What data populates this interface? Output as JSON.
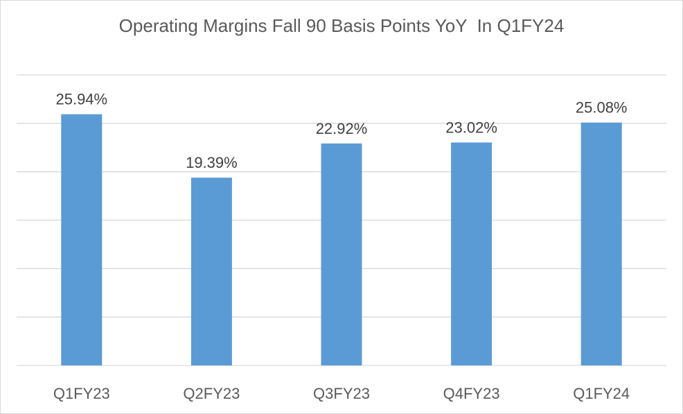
{
  "chart_data": {
    "type": "bar",
    "title": "Operating Margins Fall 90 Basis Points YoY  In Q1FY24",
    "xlabel": "",
    "ylabel": "",
    "categories": [
      "Q1FY23",
      "Q2FY23",
      "Q3FY23",
      "Q4FY23",
      "Q1FY24"
    ],
    "values": [
      25.94,
      19.39,
      22.92,
      23.02,
      25.08
    ],
    "data_labels": [
      "25.94%",
      "19.39%",
      "22.92%",
      "23.02%",
      "25.08%"
    ],
    "ylim": [
      0,
      30
    ],
    "y_gridlines": [
      5,
      10,
      15,
      20,
      25,
      30
    ],
    "y_tick_labels_shown": false,
    "grid": true,
    "legend": "none",
    "colors": {
      "bar": "#5b9bd5",
      "gridline": "#d9d9d9",
      "text": "#595959"
    }
  }
}
